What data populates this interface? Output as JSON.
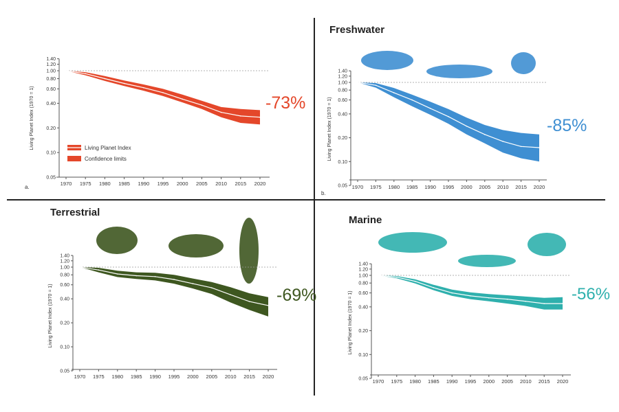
{
  "colors": {
    "red": "#e4472a",
    "blue": "#3f8fd2",
    "green": "#3e5720",
    "teal": "#2fb0ad"
  },
  "chart_data": [
    {
      "type": "area",
      "panel_label": "a.",
      "title": "",
      "ylabel": "Living Planet Index (1970 = 1)",
      "y_scale": "log",
      "ylim": [
        0.05,
        1.4
      ],
      "yticks": [
        0.05,
        0.1,
        0.2,
        0.4,
        0.6,
        0.8,
        1.0,
        1.2,
        1.4
      ],
      "ytick_labels": [
        "0.05",
        "0.10",
        "0.20",
        "0.40",
        "0.60",
        "0.80",
        "1.00",
        "1.20",
        "1.40"
      ],
      "xticks": [
        1970,
        1975,
        1980,
        1985,
        1990,
        1995,
        2000,
        2005,
        2010,
        2015,
        2020
      ],
      "x": [
        1970,
        1975,
        1980,
        1985,
        1990,
        1995,
        2000,
        2005,
        2010,
        2015,
        2020
      ],
      "series": [
        {
          "name": "Living Planet Index",
          "values": [
            1.0,
            0.92,
            0.8,
            0.7,
            0.62,
            0.54,
            0.45,
            0.38,
            0.31,
            0.28,
            0.27
          ]
        },
        {
          "name": "Confidence limits",
          "upper": [
            1.0,
            0.96,
            0.86,
            0.76,
            0.68,
            0.6,
            0.51,
            0.43,
            0.36,
            0.34,
            0.33
          ],
          "lower": [
            1.0,
            0.88,
            0.75,
            0.65,
            0.57,
            0.49,
            0.41,
            0.34,
            0.27,
            0.23,
            0.22
          ]
        }
      ],
      "legend": [
        "Living Planet Index",
        "Confidence limits"
      ],
      "legend_position": "bottom-left",
      "annotation": "-73%",
      "color": "#e4472a"
    },
    {
      "type": "area",
      "panel_label": "b.",
      "title": "Freshwater",
      "ylabel": "Living Planet Index (1970 = 1)",
      "y_scale": "log",
      "ylim": [
        0.05,
        1.4
      ],
      "yticks": [
        0.05,
        0.1,
        0.2,
        0.4,
        0.6,
        0.8,
        1.0,
        1.2,
        1.4
      ],
      "ytick_labels": [
        "0.05",
        "0.10",
        "0.20",
        "0.40",
        "0.60",
        "0.80",
        "1.00",
        "1.20",
        "1.40"
      ],
      "xticks": [
        1970,
        1975,
        1980,
        1985,
        1990,
        1995,
        2000,
        2005,
        2010,
        2015,
        2020
      ],
      "x": [
        1970,
        1975,
        1980,
        1985,
        1990,
        1995,
        2000,
        2005,
        2010,
        2015,
        2020
      ],
      "series": [
        {
          "name": "Living Planet Index",
          "values": [
            1.0,
            0.92,
            0.74,
            0.6,
            0.47,
            0.37,
            0.28,
            0.22,
            0.18,
            0.155,
            0.15
          ]
        },
        {
          "name": "Confidence limits",
          "upper": [
            1.0,
            0.98,
            0.85,
            0.7,
            0.57,
            0.46,
            0.36,
            0.29,
            0.25,
            0.23,
            0.22
          ],
          "lower": [
            1.0,
            0.86,
            0.65,
            0.5,
            0.39,
            0.3,
            0.22,
            0.17,
            0.13,
            0.11,
            0.1
          ]
        }
      ],
      "annotation": "-85%",
      "color": "#3f8fd2",
      "icons": [
        "fish-icon",
        "sturgeon-icon",
        "frog-icon"
      ]
    },
    {
      "type": "area",
      "panel_label": "",
      "title": "Terrestrial",
      "ylabel": "Living Planet Index (1970 = 1)",
      "y_scale": "log",
      "ylim": [
        0.05,
        1.4
      ],
      "yticks": [
        0.05,
        0.1,
        0.2,
        0.4,
        0.6,
        0.8,
        1.0,
        1.2,
        1.4
      ],
      "ytick_labels": [
        "0.05",
        "0.10",
        "0.20",
        "0.40",
        "0.60",
        "0.80",
        "1.00",
        "1.20",
        "1.40"
      ],
      "xticks": [
        1970,
        1975,
        1980,
        1985,
        1990,
        1995,
        2000,
        2005,
        2010,
        2015,
        2020
      ],
      "x": [
        1970,
        1975,
        1980,
        1985,
        1990,
        1995,
        2000,
        2005,
        2010,
        2015,
        2020
      ],
      "series": [
        {
          "name": "Living Planet Index",
          "values": [
            1.0,
            0.92,
            0.82,
            0.78,
            0.76,
            0.7,
            0.62,
            0.55,
            0.45,
            0.37,
            0.33
          ]
        },
        {
          "name": "Confidence limits",
          "upper": [
            1.0,
            0.98,
            0.9,
            0.86,
            0.85,
            0.8,
            0.72,
            0.65,
            0.56,
            0.47,
            0.42
          ],
          "lower": [
            1.0,
            0.86,
            0.75,
            0.71,
            0.68,
            0.62,
            0.54,
            0.46,
            0.36,
            0.29,
            0.24
          ]
        }
      ],
      "annotation": "-69%",
      "color": "#3e5720",
      "icons": [
        "iguana-icon",
        "big-cat-icon",
        "monkey-icon"
      ]
    },
    {
      "type": "area",
      "panel_label": "",
      "title": "Marine",
      "ylabel": "Living Planet Index (1970 = 1)",
      "y_scale": "log",
      "ylim": [
        0.05,
        1.4
      ],
      "yticks": [
        0.05,
        0.1,
        0.2,
        0.4,
        0.6,
        0.8,
        1.0,
        1.2,
        1.4
      ],
      "ytick_labels": [
        "0.05",
        "0.10",
        "0.20",
        "0.40",
        "0.60",
        "0.80",
        "1.00",
        "1.20",
        "1.40"
      ],
      "xticks": [
        1970,
        1975,
        1980,
        1985,
        1990,
        1995,
        2000,
        2005,
        2010,
        2015,
        2020
      ],
      "x": [
        1970,
        1975,
        1980,
        1985,
        1990,
        1995,
        2000,
        2005,
        2010,
        2015,
        2020
      ],
      "series": [
        {
          "name": "Living Planet Index",
          "values": [
            1.0,
            0.95,
            0.84,
            0.7,
            0.6,
            0.55,
            0.52,
            0.5,
            0.47,
            0.44,
            0.44
          ]
        },
        {
          "name": "Confidence limits",
          "upper": [
            1.0,
            0.98,
            0.89,
            0.76,
            0.66,
            0.61,
            0.58,
            0.56,
            0.54,
            0.52,
            0.53
          ],
          "lower": [
            1.0,
            0.92,
            0.79,
            0.65,
            0.55,
            0.5,
            0.47,
            0.44,
            0.41,
            0.37,
            0.37
          ]
        }
      ],
      "annotation": "-56%",
      "color": "#2fb0ad",
      "icons": [
        "whale-icon",
        "shark-icon",
        "turtle-icon"
      ]
    }
  ]
}
